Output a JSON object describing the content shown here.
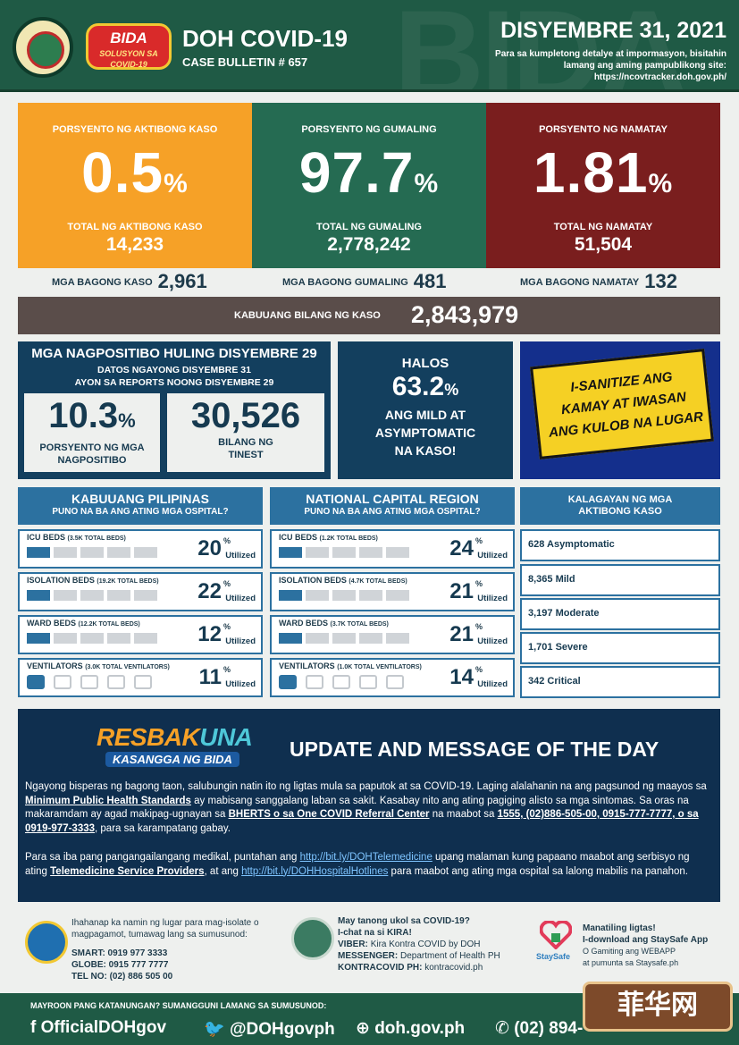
{
  "header": {
    "title": "DOH COVID-19",
    "bulletin": "CASE BULLETIN # 657",
    "date": "DISYEMBRE 31, 2021",
    "note": "Para sa kumpletong detalye at impormasyon, bisitahin lamang ang aming pampublikong site: https://ncovtracker.doh.gov.ph/",
    "logo_text": "BIDA",
    "logo_sub": "SOLUSYON SA COVID-19"
  },
  "stats": {
    "active": {
      "label": "PORSYENTO NG AKTIBONG KASO",
      "pct": "0.5",
      "total_label": "TOTAL NG AKTIBONG KASO",
      "total": "14,233"
    },
    "recovered": {
      "label": "PORSYENTO NG GUMALING",
      "pct": "97.7",
      "total_label": "TOTAL NG GUMALING",
      "total": "2,778,242"
    },
    "deaths": {
      "label": "PORSYENTO NG NAMATAY",
      "pct": "1.81",
      "total_label": "TOTAL NG NAMATAY",
      "total": "51,504"
    },
    "pct_sign": "%"
  },
  "new": {
    "cases_label": "MGA BAGONG KASO",
    "cases": "2,961",
    "recovered_label": "MGA BAGONG GUMALING",
    "recovered": "481",
    "deaths_label": "MGA BAGONG NAMATAY",
    "deaths": "132"
  },
  "total": {
    "label": "KABUUANG BILANG NG KASO",
    "value": "2,843,979"
  },
  "positivity": {
    "title": "MGA NAGPOSITIBO HULING DISYEMBRE 29",
    "sub1": "DATOS NGAYONG DISYEMBRE 31",
    "sub2": "AYON SA REPORTS NOONG DISYEMBRE 29",
    "rate": "10.3",
    "rate_label1": "PORSYENTO NG MGA",
    "rate_label2": "NAGPOSITIBO",
    "tested": "30,526",
    "tested_label1": "BILANG NG",
    "tested_label2": "TINEST"
  },
  "halos": {
    "l1": "HALOS",
    "pct": "63.2",
    "l2": "ANG MILD AT",
    "l3": "ASYMPTOMATIC",
    "l4": "NA KASO!"
  },
  "sanitize": {
    "l1": "I-SANITIZE ANG",
    "l2": "KAMAY AT IWASAN",
    "l3": "ANG KULOB NA LUGAR"
  },
  "ph": {
    "title": "KABUUANG PILIPINAS",
    "sub": "PUNO NA BA ANG ATING MGA OSPITAL?",
    "rows": [
      {
        "name": "ICU BEDS",
        "total": "(3.5K TOTAL BEDS)",
        "pct": "20",
        "fill": 0.2
      },
      {
        "name": "ISOLATION BEDS",
        "total": "(19.2K TOTAL BEDS)",
        "pct": "22",
        "fill": 0.22
      },
      {
        "name": "WARD BEDS",
        "total": "(12.2K TOTAL BEDS)",
        "pct": "12",
        "fill": 0.12
      },
      {
        "name": "VENTILATORS",
        "total": "(3.0K TOTAL VENTILATORS)",
        "pct": "11",
        "fill": 0.11
      }
    ]
  },
  "ncr": {
    "title": "NATIONAL CAPITAL REGION",
    "sub": "PUNO NA BA ANG ATING MGA OSPITAL?",
    "rows": [
      {
        "name": "ICU BEDS",
        "total": "(1.2K TOTAL BEDS)",
        "pct": "24",
        "fill": 0.24
      },
      {
        "name": "ISOLATION BEDS",
        "total": "(4.7K TOTAL BEDS)",
        "pct": "21",
        "fill": 0.21
      },
      {
        "name": "WARD BEDS",
        "total": "(3.7K TOTAL BEDS)",
        "pct": "21",
        "fill": 0.21
      },
      {
        "name": "VENTILATORS",
        "total": "(1.0K TOTAL VENTILATORS)",
        "pct": "14",
        "fill": 0.14
      }
    ]
  },
  "utilized": "Utilized",
  "kalagayan": {
    "title1": "KALAGAYAN NG MGA",
    "title2": "AKTIBONG KASO",
    "items": [
      "628 Asymptomatic",
      "8,365 Mild",
      "3,197 Moderate",
      "1,701 Severe",
      "342 Critical"
    ]
  },
  "message": {
    "logo1": "RESBAK",
    "logo1b": "UNA",
    "logo2": "KASANGGA NG BIDA",
    "title": "UPDATE AND MESSAGE OF THE DAY",
    "p1_a": "Ngayong bisperas ng bagong taon, salubungin natin ito ng ligtas mula sa paputok at sa COVID-19. Laging alalahanin na ang pagsunod ng maayos sa ",
    "p1_b": "Minimum Public Health Standards",
    "p1_c": " ay mabisang sanggalang laban sa sakit. Kasabay nito ang ating pagiging alisto sa mga sintomas. Sa oras na makaramdam ay agad makipag-ugnayan sa ",
    "p1_d": "BHERTS o sa One COVID Referral Center",
    "p1_e": " na maabot sa ",
    "p1_f": "1555, (02)886-505-00, 0915-777-7777, o sa 0919-977-3333",
    "p1_g": ", para sa karampatang gabay.",
    "p2_a": "Para sa iba pang pangangailangang medikal, puntahan ang ",
    "p2_b": "http://bit.ly/DOHTelemedicine",
    "p2_c": " upang malaman kung papaano maabot ang serbisyo ng ating ",
    "p2_d": "Telemedicine Service Providers",
    "p2_e": ", at ang ",
    "p2_f": "http://bit.ly/DOHHospitalHotlines",
    "p2_g": " para maabot ang ating mga ospital sa lalong mabilis na panahon."
  },
  "contacts": {
    "iso_1": "Ihahanap ka namin ng lugar para mag-isolate o",
    "iso_2": "magpagamot, tumawag lang sa sumusunod:",
    "smart": "SMART: 0919 977 3333",
    "globe": "GLOBE: 0915 777 7777",
    "tel": "TEL NO: (02) 886 505 00",
    "kira_1": "May tanong ukol sa COVID-19?",
    "kira_2": "I-chat na si KIRA!",
    "viber_label": "VIBER:",
    "viber": "Kira Kontra COVID by DOH",
    "messenger_label": "MESSENGER:",
    "messenger": "Department of Health PH",
    "kontra_label": "KONTRACOVID PH:",
    "kontra": "kontracovid.ph",
    "ss_1": "Manatiling ligtas!",
    "ss_2": "I-download ang StaySafe App",
    "ss_3": "O Gamiting ang WEBAPP",
    "ss_4": "at pumunta sa Staysafe.ph",
    "ss_logo": "StaySafe"
  },
  "footer": {
    "question": "MAYROON PANG KATANUNGAN? SUMANGGUNI LAMANG SA SUMUSUNOD:",
    "facebook": "OfficialDOHgov",
    "twitter": "@DOHgovph",
    "web": "doh.gov.ph",
    "phone": "(02) 894-",
    "watermark": "菲华网"
  }
}
